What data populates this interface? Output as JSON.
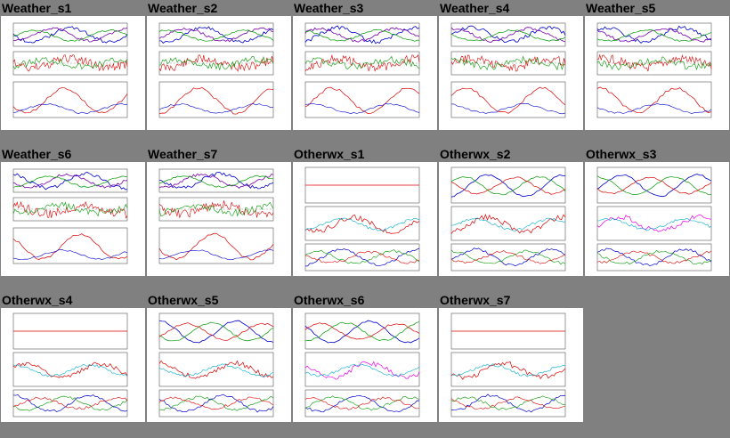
{
  "page": {
    "background": "#808080"
  },
  "colors": {
    "temp": "#dd0000",
    "dew": "#009900",
    "wind": "#0000cc",
    "pressure": "#7700aa",
    "cyan": "#00aacc",
    "magenta": "#ee00ee"
  },
  "tiles": [
    {
      "title": "Weather_s1",
      "kind": "weather"
    },
    {
      "title": "Weather_s2",
      "kind": "weather"
    },
    {
      "title": "Weather_s3",
      "kind": "weather"
    },
    {
      "title": "Weather_s4",
      "kind": "weather"
    },
    {
      "title": "Weather_s5",
      "kind": "weather"
    },
    {
      "title": "Weather_s6",
      "kind": "weather"
    },
    {
      "title": "Weather_s7",
      "kind": "weather"
    },
    {
      "title": "Otherwx_s1",
      "kind": "otherwx"
    },
    {
      "title": "Otherwx_s2",
      "kind": "otherwx"
    },
    {
      "title": "Otherwx_s3",
      "kind": "otherwx"
    },
    {
      "title": "Otherwx_s4",
      "kind": "otherwx"
    },
    {
      "title": "Otherwx_s5",
      "kind": "otherwx"
    },
    {
      "title": "Otherwx_s6",
      "kind": "otherwx"
    },
    {
      "title": "Otherwx_s7",
      "kind": "otherwx"
    }
  ]
}
